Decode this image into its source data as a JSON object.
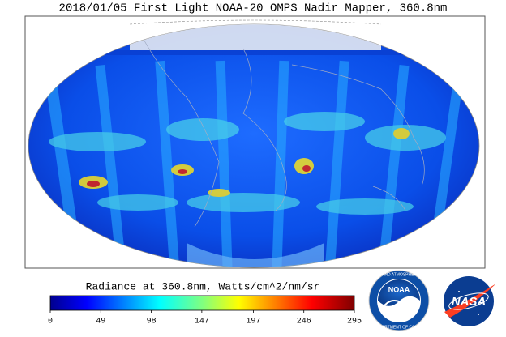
{
  "title": "2018/01/05 First Light NOAA-20 OMPS Nadir Mapper, 360.8nm",
  "colorbar": {
    "label": "Radiance at 360.8nm, Watts/cm^2/nm/sr",
    "range": [
      0,
      295
    ],
    "ticks": [
      0,
      49,
      98,
      147,
      197,
      246,
      295
    ]
  },
  "logos": [
    {
      "text": "NOAA",
      "ring_top": "NATIONAL OCEANIC AND ATMOSPHERIC ADMINISTRATION",
      "ring_bottom": "U.S. DEPARTMENT OF COMMERCE"
    },
    {
      "text": "NASA"
    }
  ]
}
